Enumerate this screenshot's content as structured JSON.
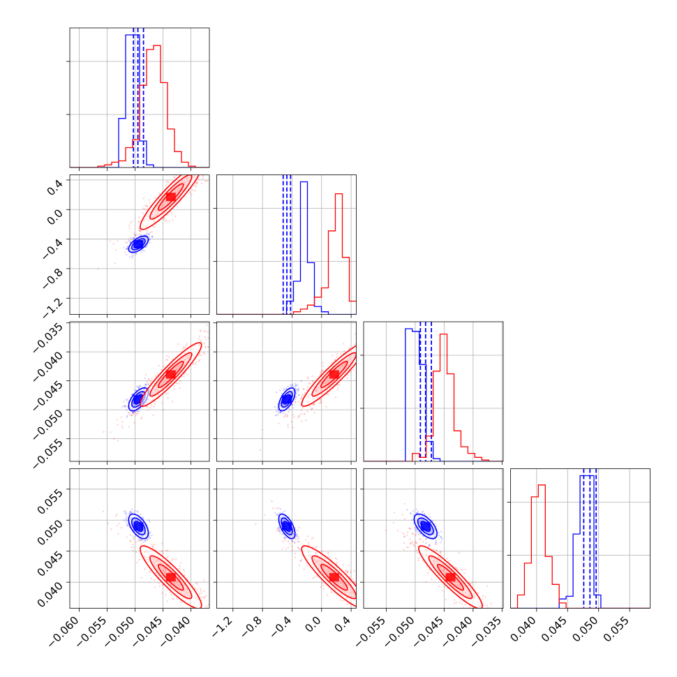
{
  "chart_data": {
    "type": "corner",
    "title": "",
    "parameter_count": 4,
    "colors": {
      "blue": "#0000ff",
      "red": "#ff0000",
      "grid": "#b0b0b0",
      "frame": "#000000"
    },
    "grid": true,
    "x_ticks": [
      [
        "−0.060",
        "−0.055",
        "−0.050",
        "−0.045",
        "−0.040"
      ],
      [
        "−1.2",
        "−0.8",
        "−0.4",
        "0.0",
        "0.4"
      ],
      [
        "−0.055",
        "−0.050",
        "−0.045",
        "−0.040",
        "−0.035"
      ],
      [
        "0.040",
        "0.045",
        "0.050",
        "0.055"
      ]
    ],
    "y_ticks": [
      [],
      [
        "0.4",
        "0.0",
        "−0.4",
        "−0.8",
        "−1.2"
      ],
      [
        "−0.035",
        "−0.040",
        "−0.045",
        "−0.050",
        "−0.055"
      ],
      [
        "0.055",
        "0.050",
        "0.045",
        "0.040"
      ]
    ],
    "ranges": [
      [
        -0.0617,
        -0.0367
      ],
      [
        -1.42,
        0.47
      ],
      [
        -0.0589,
        -0.0348
      ],
      [
        0.0358,
        0.0583
      ]
    ],
    "x_tick_values": [
      [
        -0.06,
        -0.055,
        -0.05,
        -0.045,
        -0.04
      ],
      [
        -1.2,
        -0.8,
        -0.4,
        0.0,
        0.4
      ],
      [
        -0.055,
        -0.05,
        -0.045,
        -0.04,
        -0.035
      ],
      [
        0.04,
        0.045,
        0.05,
        0.055
      ]
    ],
    "y_tick_values": [
      [],
      [
        0.4,
        0.0,
        -0.4,
        -0.8,
        -1.2
      ],
      [
        -0.035,
        -0.04,
        -0.045,
        -0.05,
        -0.055
      ],
      [
        0.055,
        0.05,
        0.045,
        0.04
      ]
    ],
    "series": [
      {
        "color": "blue",
        "mean": [
          -0.0494,
          -0.47,
          -0.0482,
          0.049
        ],
        "sd": [
          0.0008,
          0.05,
          0.0009,
          0.0009
        ],
        "quantiles": [
          [
            -0.0503,
            -0.0495,
            -0.0485
          ],
          [
            -0.52,
            -0.47,
            -0.42
          ],
          [
            -0.0491,
            -0.0482,
            -0.0472
          ],
          [
            0.0476,
            0.0486,
            0.0496
          ]
        ],
        "histograms": [
          {
            "edges_start": -0.0617,
            "bin_width": 0.00125,
            "counts": [
              0,
              0,
              0,
              0,
              0,
              0,
              0,
              0.37,
              1.0,
              1.0,
              0.2,
              0.02,
              0,
              0,
              0,
              0,
              0,
              0,
              0,
              0
            ]
          },
          {
            "edges_start": -1.42,
            "bin_width": 0.0945,
            "counts": [
              0,
              0,
              0,
              0,
              0,
              0,
              0,
              0,
              0,
              0,
              0.1,
              0.25,
              1.0,
              0.39,
              0.06,
              0.02,
              0,
              0,
              0,
              0
            ]
          },
          {
            "edges_start": -0.0589,
            "bin_width": 0.0012,
            "counts": [
              0,
              0,
              0,
              0,
              0,
              0,
              1.0,
              0.98,
              0.73,
              0.15,
              0.02,
              0,
              0,
              0,
              0,
              0,
              0,
              0,
              0,
              0
            ]
          },
          {
            "edges_start": 0.0358,
            "bin_width": 0.00112,
            "counts": [
              0,
              0,
              0,
              0,
              0,
              0,
              0,
              0.07,
              0.09,
              0.56,
              1.0,
              1.0,
              0.1,
              0,
              0,
              0,
              0,
              0,
              0,
              0
            ]
          }
        ]
      },
      {
        "color": "red",
        "mean": [
          -0.0436,
          0.17,
          -0.0439,
          0.0408
        ],
        "sd": [
          0.0025,
          0.2,
          0.0025,
          0.0023
        ],
        "histograms": [
          {
            "edges_start": -0.0617,
            "bin_width": 0.00125,
            "counts": [
              0,
              0,
              0,
              0,
              0.01,
              0.02,
              0.04,
              0.05,
              0.15,
              0.21,
              0.62,
              0.89,
              0.92,
              0.64,
              0.29,
              0.12,
              0.04,
              0.01,
              0,
              0
            ]
          },
          {
            "edges_start": -1.42,
            "bin_width": 0.0945,
            "counts": [
              0,
              0,
              0,
              0,
              0,
              0,
              0,
              0,
              0,
              0,
              0,
              0.02,
              0.04,
              0.07,
              0.13,
              0.2,
              0.63,
              0.91,
              0.43,
              0.1
            ]
          },
          {
            "edges_start": -0.0589,
            "bin_width": 0.0012,
            "counts": [
              0,
              0,
              0,
              0,
              0,
              0,
              0,
              0.06,
              0.03,
              0.19,
              0.68,
              0.96,
              0.66,
              0.23,
              0.11,
              0.06,
              0.03,
              0.01,
              0,
              0
            ]
          },
          {
            "edges_start": 0.0358,
            "bin_width": 0.00112,
            "counts": [
              0,
              0.1,
              0.34,
              0.84,
              0.93,
              0.39,
              0.18,
              0.04,
              0,
              0,
              0,
              0,
              0,
              0,
              0,
              0,
              0,
              0,
              0,
              0
            ]
          }
        ]
      }
    ],
    "correlations": {
      "blue": {
        "0-1": 0.6,
        "0-2": 0.6,
        "1-2": 0.6,
        "0-3": -0.55,
        "1-3": -0.6,
        "2-3": -0.6
      },
      "red": {
        "0-1": 0.92,
        "0-2": 0.93,
        "1-2": 0.93,
        "0-3": -0.9,
        "1-3": -0.9,
        "2-3": -0.92
      }
    }
  }
}
